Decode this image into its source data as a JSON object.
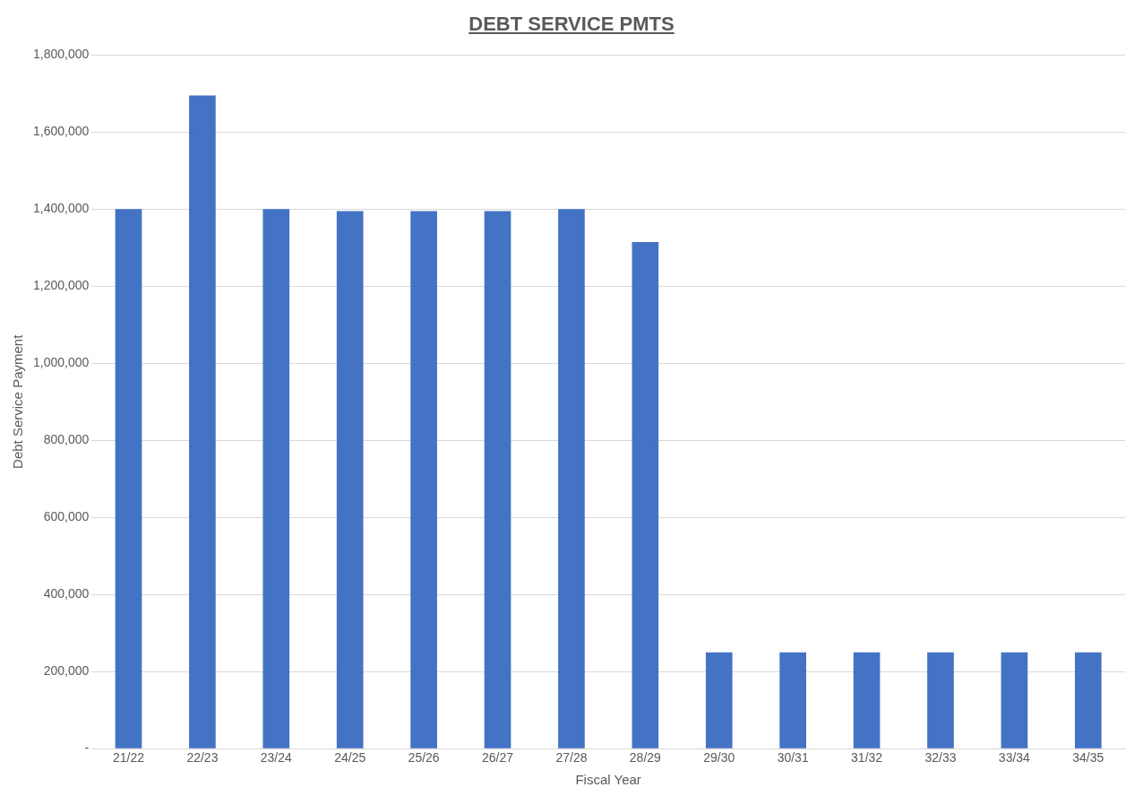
{
  "chart_data": {
    "type": "bar",
    "title": "DEBT SERVICE PMTS",
    "xlabel": "Fiscal Year",
    "ylabel": "Debt Service Payment",
    "categories": [
      "21/22",
      "22/23",
      "23/24",
      "24/25",
      "25/26",
      "26/27",
      "27/28",
      "28/29",
      "29/30",
      "30/31",
      "31/32",
      "32/33",
      "33/34",
      "34/35"
    ],
    "values": [
      1400000,
      1695000,
      1400000,
      1395000,
      1395000,
      1395000,
      1400000,
      1315000,
      250000,
      250000,
      250000,
      250000,
      250000,
      250000
    ],
    "color": "#4472c4",
    "ylim": [
      0,
      1800000
    ],
    "yticks": [
      {
        "value": 0,
        "label": "-"
      },
      {
        "value": 200000,
        "label": "200,000"
      },
      {
        "value": 400000,
        "label": "400,000"
      },
      {
        "value": 600000,
        "label": "600,000"
      },
      {
        "value": 800000,
        "label": "800,000"
      },
      {
        "value": 1000000,
        "label": "1,000,000"
      },
      {
        "value": 1200000,
        "label": "1,200,000"
      },
      {
        "value": 1400000,
        "label": "1,400,000"
      },
      {
        "value": 1600000,
        "label": "1,600,000"
      },
      {
        "value": 1800000,
        "label": "1,800,000"
      }
    ],
    "grid": "y"
  }
}
